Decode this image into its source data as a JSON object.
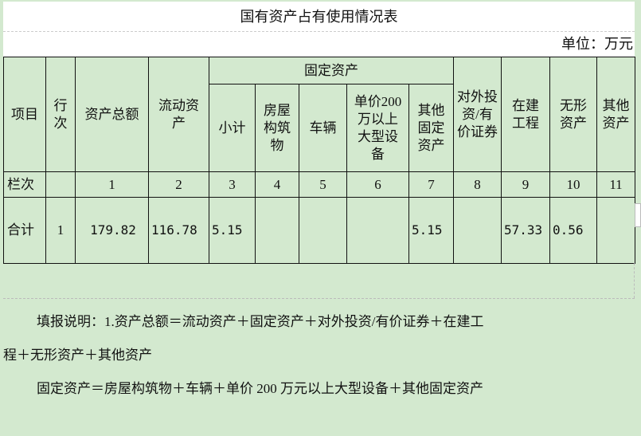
{
  "title": "国有资产占有使用情况表",
  "unit": "单位：万元",
  "headers": {
    "item": "项目",
    "row_no": "行次",
    "total_assets": "资产总额",
    "current_assets": "流动资产",
    "fixed_assets": "固定资产",
    "subtotal": "小计",
    "buildings": "房屋构筑物",
    "vehicles": "车辆",
    "large_equipment": "单价200万以上大型设备",
    "other_fixed": "其他固定资产",
    "investments": "对外投资/有价证券",
    "construction": "在建工程",
    "intangible": "无形资产",
    "other_assets": "其他资产"
  },
  "column_row": {
    "label": "栏次",
    "values": [
      "",
      "1",
      "2",
      "3",
      "4",
      "5",
      "6",
      "7",
      "8",
      "9",
      "10",
      "11"
    ]
  },
  "total_row": {
    "label": "合计",
    "values": [
      "1",
      "179.82",
      "116.78",
      "5.15",
      "",
      "",
      "",
      "5.15",
      "",
      "57.33",
      "0.56",
      ""
    ]
  },
  "notes": [
    "填报说明：1.资产总额＝流动资产＋固定资产＋对外投资/有价证券＋在建工",
    "程＋无形资产＋其他资产",
    "固定资产＝房屋构筑物＋车辆＋单价 200 万元以上大型设备＋其他固定资产"
  ]
}
